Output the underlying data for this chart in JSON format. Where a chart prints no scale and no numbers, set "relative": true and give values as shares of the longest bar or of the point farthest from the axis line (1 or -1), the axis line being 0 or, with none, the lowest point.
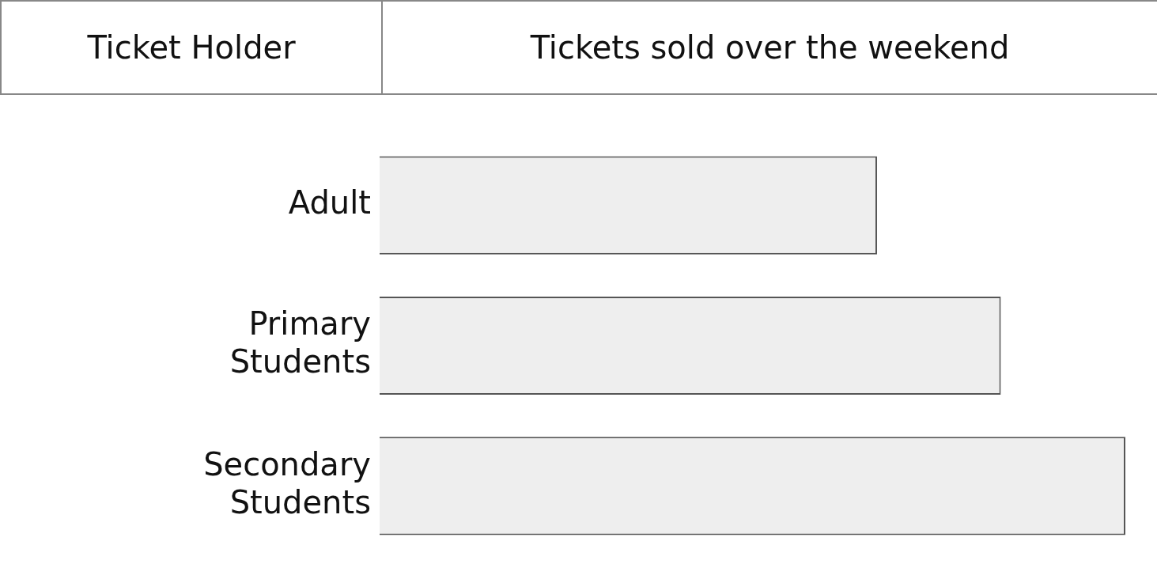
{
  "chart_data": {
    "type": "bar",
    "title": "Tickets sold over the weekend",
    "ylabel": "Ticket Holder",
    "orientation": "horizontal",
    "relative": true,
    "categories": [
      "Adult",
      "Primary Students",
      "Secondary Students"
    ],
    "values": [
      0.667,
      0.833,
      1
    ],
    "color": "#eeeeee"
  }
}
